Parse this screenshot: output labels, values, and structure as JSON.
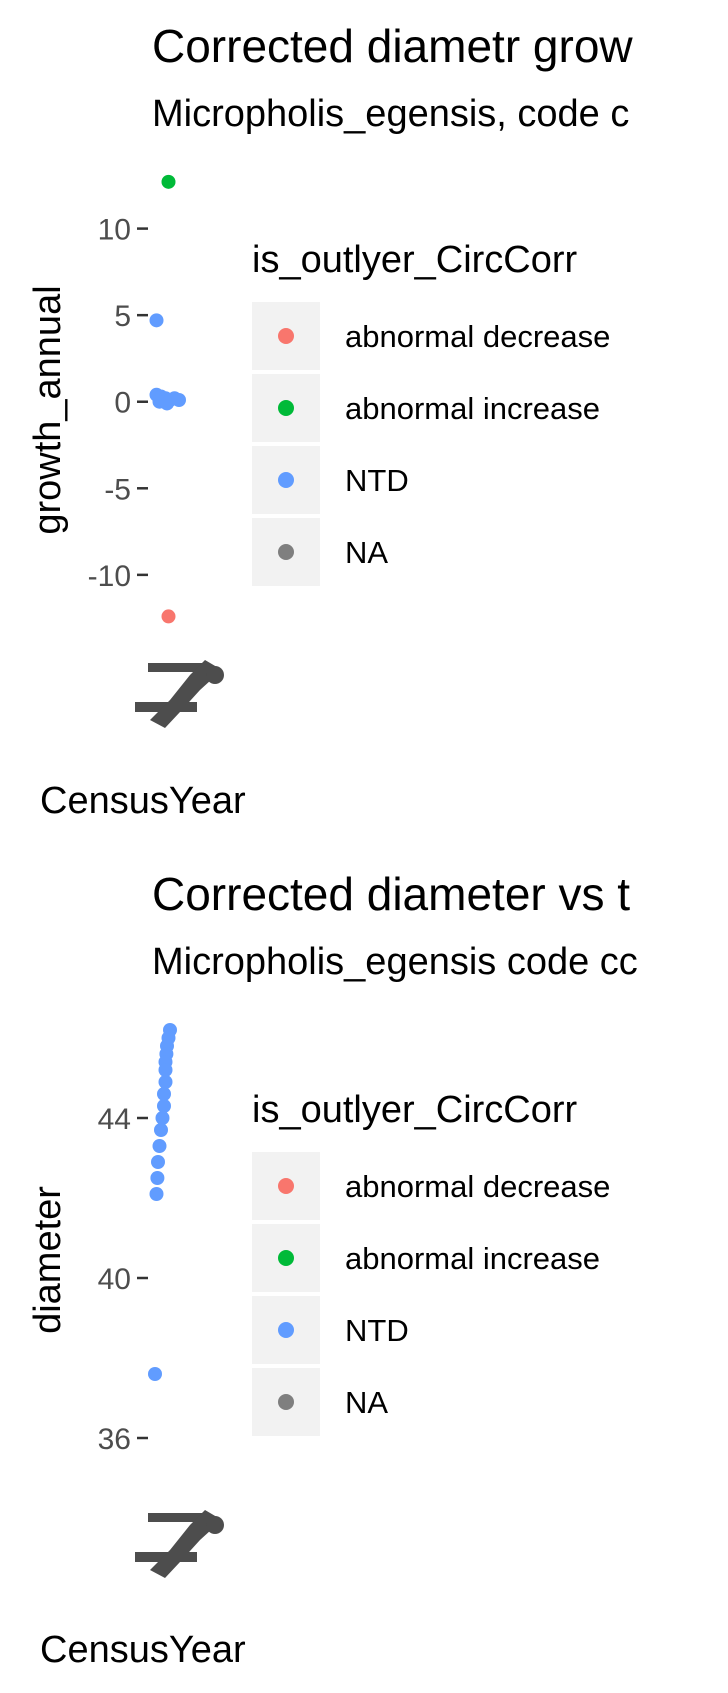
{
  "legend": {
    "title": "is_outlyer_CircCorr",
    "entries": [
      {
        "label": "abnormal decrease",
        "color": "#F8766D"
      },
      {
        "label": "abnormal increase",
        "color": "#00BA38"
      },
      {
        "label": "NTD",
        "color": "#619CFF"
      },
      {
        "label": "NA",
        "color": "#7F7F7F"
      }
    ]
  },
  "chart_data": [
    {
      "type": "scatter",
      "title": "Corrected diametr grow",
      "subtitle": "Micropholis_egensis, code c",
      "xlabel": "CensusYear",
      "ylabel": "growth_annual",
      "yticks": [
        10,
        5,
        0,
        -5,
        -10
      ],
      "ylim": [
        -13.3,
        13.5
      ],
      "points": [
        {
          "y": 12.7,
          "status": "abnormal increase",
          "dx": 0.55
        },
        {
          "y": 4.7,
          "status": "NTD",
          "dx": 0.15
        },
        {
          "y": 0.4,
          "status": "NTD",
          "dx": 0.15
        },
        {
          "y": 0.3,
          "status": "NTD",
          "dx": 0.3
        },
        {
          "y": 0.2,
          "status": "NTD",
          "dx": 0.45
        },
        {
          "y": 0.1,
          "status": "NTD",
          "dx": 0.6
        },
        {
          "y": 0.2,
          "status": "NTD",
          "dx": 0.75
        },
        {
          "y": 0.0,
          "status": "NTD",
          "dx": 0.25
        },
        {
          "y": -0.1,
          "status": "NTD",
          "dx": 0.5
        },
        {
          "y": 0.1,
          "status": "NTD",
          "dx": 0.9
        },
        {
          "y": -12.4,
          "status": "abnormal decrease",
          "dx": 0.55
        }
      ]
    },
    {
      "type": "scatter",
      "title": "Corrected diameter vs t",
      "subtitle": "Micropholis_egensis code cc",
      "xlabel": "CensusYear",
      "ylabel": "diameter",
      "yticks": [
        44,
        40,
        36
      ],
      "ylim": [
        34.9,
        46.4
      ],
      "points": [
        {
          "y": 46.2,
          "status": "NTD",
          "dx": 0.6
        },
        {
          "y": 46.0,
          "status": "NTD",
          "dx": 0.55
        },
        {
          "y": 45.8,
          "status": "NTD",
          "dx": 0.5
        },
        {
          "y": 45.6,
          "status": "NTD",
          "dx": 0.48
        },
        {
          "y": 45.4,
          "status": "NTD",
          "dx": 0.45
        },
        {
          "y": 45.2,
          "status": "NTD",
          "dx": 0.45
        },
        {
          "y": 44.9,
          "status": "NTD",
          "dx": 0.45
        },
        {
          "y": 44.6,
          "status": "NTD",
          "dx": 0.4
        },
        {
          "y": 44.3,
          "status": "NTD",
          "dx": 0.4
        },
        {
          "y": 44.0,
          "status": "NTD",
          "dx": 0.35
        },
        {
          "y": 43.7,
          "status": "NTD",
          "dx": 0.3
        },
        {
          "y": 43.3,
          "status": "NTD",
          "dx": 0.25
        },
        {
          "y": 42.9,
          "status": "NTD",
          "dx": 0.2
        },
        {
          "y": 42.5,
          "status": "NTD",
          "dx": 0.18
        },
        {
          "y": 42.1,
          "status": "NTD",
          "dx": 0.15
        },
        {
          "y": 37.6,
          "status": "NTD",
          "dx": 0.1
        }
      ]
    }
  ]
}
